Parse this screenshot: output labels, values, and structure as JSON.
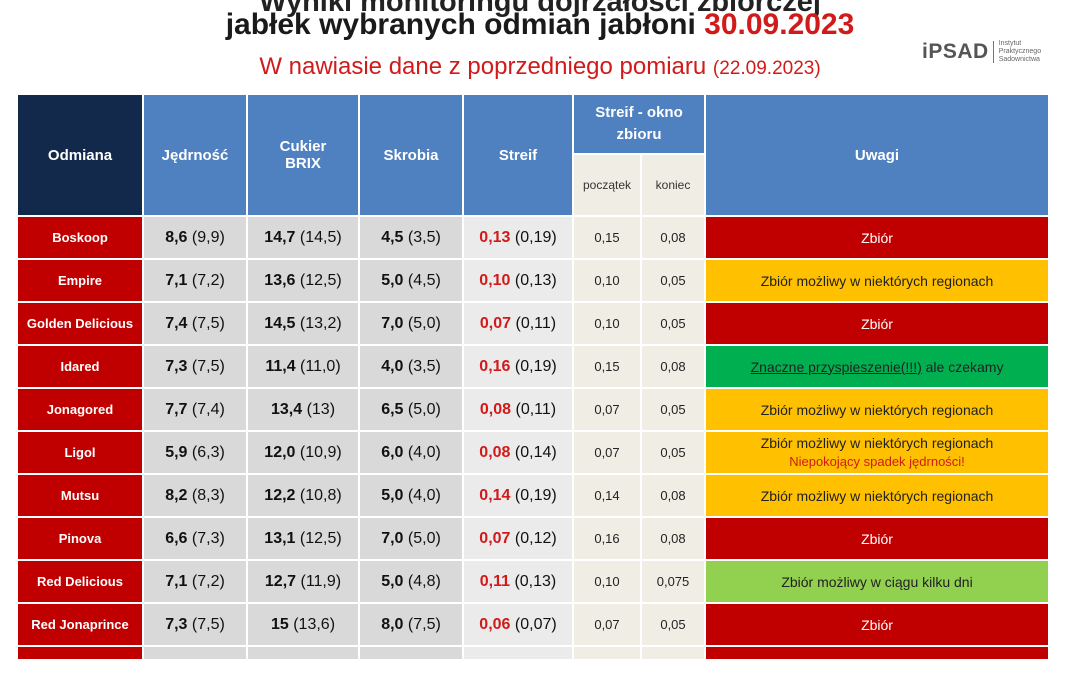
{
  "header": {
    "title_cut": "Wyniki monitoringu dojrzałości zbiorczej",
    "title_main": "jabłek wybranych odmian jabłoni",
    "title_date": "30.09.2023",
    "subtitle": "W nawiasie dane z poprzedniego pomiaru",
    "subtitle_prev": "(22.09.2023)"
  },
  "logo": {
    "mark": "iPSAD",
    "inst_line1": "Instytut",
    "inst_line2": "Praktycznego",
    "inst_line3": "Sadownictwa"
  },
  "table": {
    "headers": {
      "variety": "Odmiana",
      "firmness": "Jędrność",
      "sugar_line1": "Cukier",
      "sugar_line2": "BRIX",
      "starch": "Skrobia",
      "streif": "Streif",
      "window": "Streif - okno zbioru",
      "window_start": "początek",
      "window_end": "koniec",
      "notes": "Uwagi"
    },
    "rows": [
      {
        "name": "Boskoop",
        "firm": "8,6",
        "firm_prev": "(9,9)",
        "brix": "14,7",
        "brix_prev": "(14,5)",
        "starch": "4,5",
        "starch_prev": "(3,5)",
        "streif": "0,13",
        "streif_prev": "(0,19)",
        "start": "0,15",
        "end": "0,08",
        "note": "Zbiór",
        "note_color": "#c00000"
      },
      {
        "name": "Empire",
        "firm": "7,1",
        "firm_prev": "(7,2)",
        "brix": "13,6",
        "brix_prev": "(12,5)",
        "starch": "5,0",
        "starch_prev": "(4,5)",
        "streif": "0,10",
        "streif_prev": "(0,13)",
        "start": "0,10",
        "end": "0,05",
        "note": "Zbiór możliwy w niektórych regionach",
        "note_color": "#ffc000"
      },
      {
        "name": "Golden Delicious",
        "firm": "7,4",
        "firm_prev": "(7,5)",
        "brix": "14,5",
        "brix_prev": "(13,2)",
        "starch": "7,0",
        "starch_prev": "(5,0)",
        "streif": "0,07",
        "streif_prev": "(0,11)",
        "start": "0,10",
        "end": "0,05",
        "note": "Zbiór",
        "note_color": "#c00000"
      },
      {
        "name": "Idared",
        "firm": "7,3",
        "firm_prev": "(7,5)",
        "brix": "11,4",
        "brix_prev": "(11,0)",
        "starch": "4,0",
        "starch_prev": "(3,5)",
        "streif": "0,16",
        "streif_prev": "(0,19)",
        "start": "0,15",
        "end": "0,08",
        "note_underlined": "Znaczne przyspieszenie(!!!)",
        "note_rest": " ale  czekamy",
        "note_color": "#00b050"
      },
      {
        "name": "Jonagored",
        "firm": "7,7",
        "firm_prev": "(7,4)",
        "brix": "13,4",
        "brix_prev": "(13)",
        "starch": "6,5",
        "starch_prev": "(5,0)",
        "streif": "0,08",
        "streif_prev": "(0,11)",
        "start": "0,07",
        "end": "0,05",
        "note": "Zbiór możliwy w niektórych regionach",
        "note_color": "#ffc000"
      },
      {
        "name": "Ligol",
        "firm": "5,9",
        "firm_prev": "(6,3)",
        "brix": "12,0",
        "brix_prev": "(10,9)",
        "starch": "6,0",
        "starch_prev": "(4,0)",
        "streif": "0,08",
        "streif_prev": "(0,14)",
        "start": "0,07",
        "end": "0,05",
        "note": "Zbiór możliwy w niektórych regionach",
        "note_alert": "Niepokojący spadek jędrności!",
        "note_color": "#ffc000"
      },
      {
        "name": "Mutsu",
        "firm": "8,2",
        "firm_prev": "(8,3)",
        "brix": "12,2",
        "brix_prev": "(10,8)",
        "starch": "5,0",
        "starch_prev": "(4,0)",
        "streif": "0,14",
        "streif_prev": "(0,19)",
        "start": "0,14",
        "end": "0,08",
        "note": "Zbiór możliwy w niektórych regionach",
        "note_color": "#ffc000"
      },
      {
        "name": "Pinova",
        "firm": "6,6",
        "firm_prev": "(7,3)",
        "brix": "13,1",
        "brix_prev": "(12,5)",
        "starch": "7,0",
        "starch_prev": "(5,0)",
        "streif": "0,07",
        "streif_prev": "(0,12)",
        "start": "0,16",
        "end": "0,08",
        "note": "Zbiór",
        "note_color": "#c00000"
      },
      {
        "name": "Red Delicious",
        "firm": "7,1",
        "firm_prev": "(7,2)",
        "brix": "12,7",
        "brix_prev": "(11,9)",
        "starch": "5,0",
        "starch_prev": "(4,8)",
        "streif": "0,11",
        "streif_prev": "(0,13)",
        "start": "0,10",
        "end": "0,075",
        "note": "Zbiór możliwy w ciągu kilku dni",
        "note_color": "#92d050"
      },
      {
        "name": "Red Jonaprince",
        "firm": "7,3",
        "firm_prev": "(7,5)",
        "brix": "15",
        "brix_prev": "(13,6)",
        "starch": "8,0",
        "starch_prev": "(7,5)",
        "streif": "0,06",
        "streif_prev": "(0,07)",
        "start": "0,07",
        "end": "0,05",
        "note": "Zbiór",
        "note_color": "#c00000"
      }
    ]
  }
}
